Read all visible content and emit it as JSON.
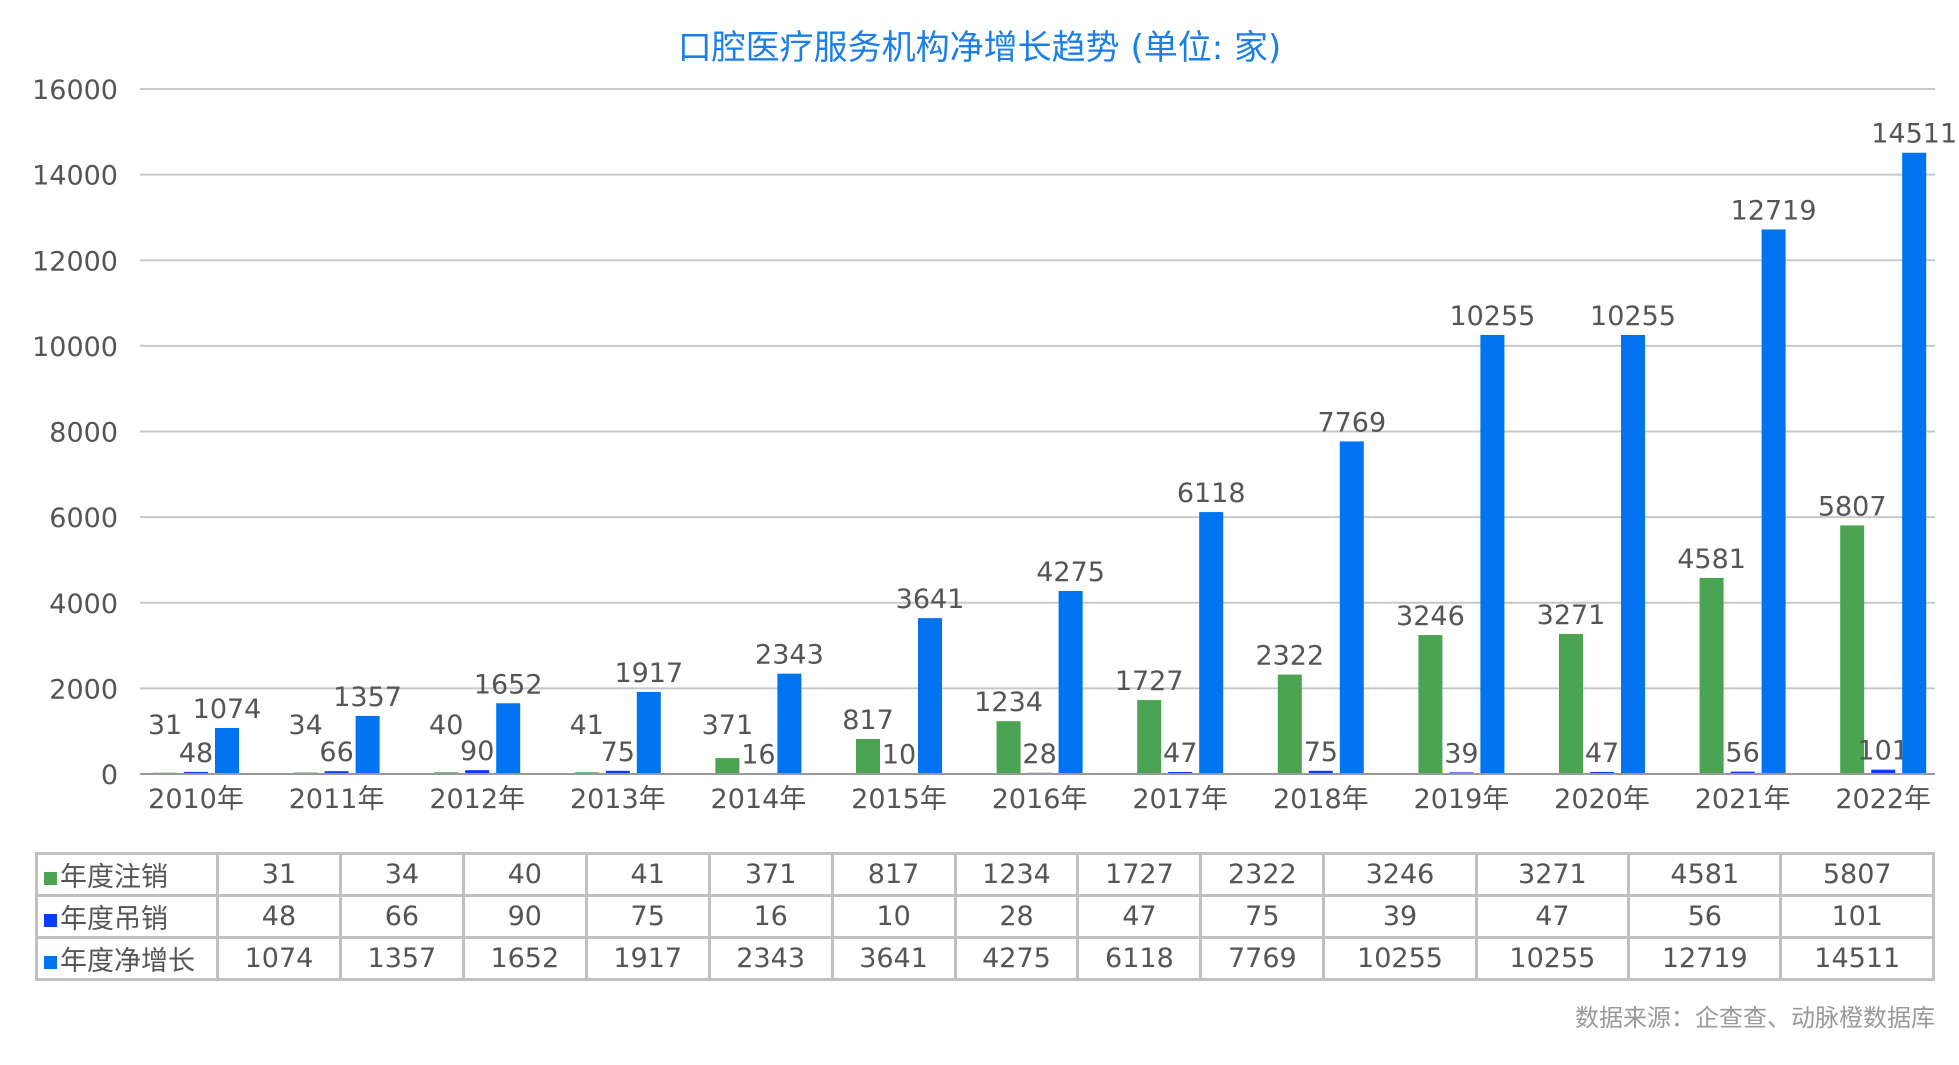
{
  "chart_data": {
    "type": "bar",
    "title": "口腔医疗服务机构净增长趋势 (单位: 家)",
    "categories": [
      "2010年",
      "2011年",
      "2012年",
      "2013年",
      "2014年",
      "2015年",
      "2016年",
      "2017年",
      "2018年",
      "2019年",
      "2020年",
      "2021年",
      "2022年"
    ],
    "ylim": [
      0,
      16000
    ],
    "yticks": [
      0,
      2000,
      4000,
      6000,
      8000,
      10000,
      12000,
      14000,
      16000
    ],
    "grid": true,
    "legend": "data-table-below",
    "series": [
      {
        "name": "年度注销",
        "color": "#4aa452",
        "values": [
          31,
          34,
          40,
          41,
          371,
          817,
          1234,
          1727,
          2322,
          3246,
          3271,
          4581,
          5807
        ]
      },
      {
        "name": "年度吊销",
        "color": "#0a3cff",
        "values": [
          48,
          66,
          90,
          75,
          16,
          10,
          28,
          47,
          75,
          39,
          47,
          56,
          101
        ]
      },
      {
        "name": "年度净增长",
        "color": "#0073f0",
        "values": [
          1074,
          1357,
          1652,
          1917,
          2343,
          3641,
          4275,
          6118,
          7769,
          10255,
          10255,
          12719,
          14511
        ]
      }
    ]
  },
  "source": "数据来源：企查查、动脉橙数据库"
}
